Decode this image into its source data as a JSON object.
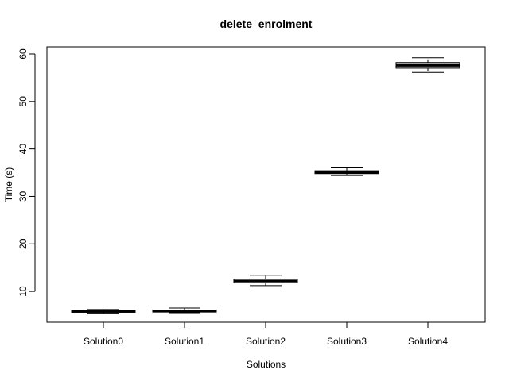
{
  "chart_data": {
    "type": "boxplot",
    "title": "delete_enrolment",
    "xlabel": "Solutions",
    "ylabel": "Time (s)",
    "categories": [
      "Solution0",
      "Solution1",
      "Solution2",
      "Solution3",
      "Solution4"
    ],
    "yticks": [
      10,
      20,
      30,
      40,
      50,
      60
    ],
    "ylim": [
      3.5,
      61.5
    ],
    "boxes": [
      {
        "name": "Solution0",
        "min": 5.4,
        "q1": 5.6,
        "median": 5.8,
        "q3": 5.95,
        "max": 6.2
      },
      {
        "name": "Solution1",
        "min": 5.5,
        "q1": 5.65,
        "median": 5.85,
        "q3": 6.05,
        "max": 6.5
      },
      {
        "name": "Solution2",
        "min": 11.2,
        "q1": 11.8,
        "median": 12.2,
        "q3": 12.6,
        "max": 13.4
      },
      {
        "name": "Solution3",
        "min": 34.4,
        "q1": 34.8,
        "median": 35.1,
        "q3": 35.4,
        "max": 36.0
      },
      {
        "name": "Solution4",
        "min": 56.1,
        "q1": 57.0,
        "median": 57.6,
        "q3": 58.2,
        "max": 59.2
      }
    ],
    "grid": false,
    "box_fill": "#d3d3d3",
    "line_color": "#000000"
  }
}
